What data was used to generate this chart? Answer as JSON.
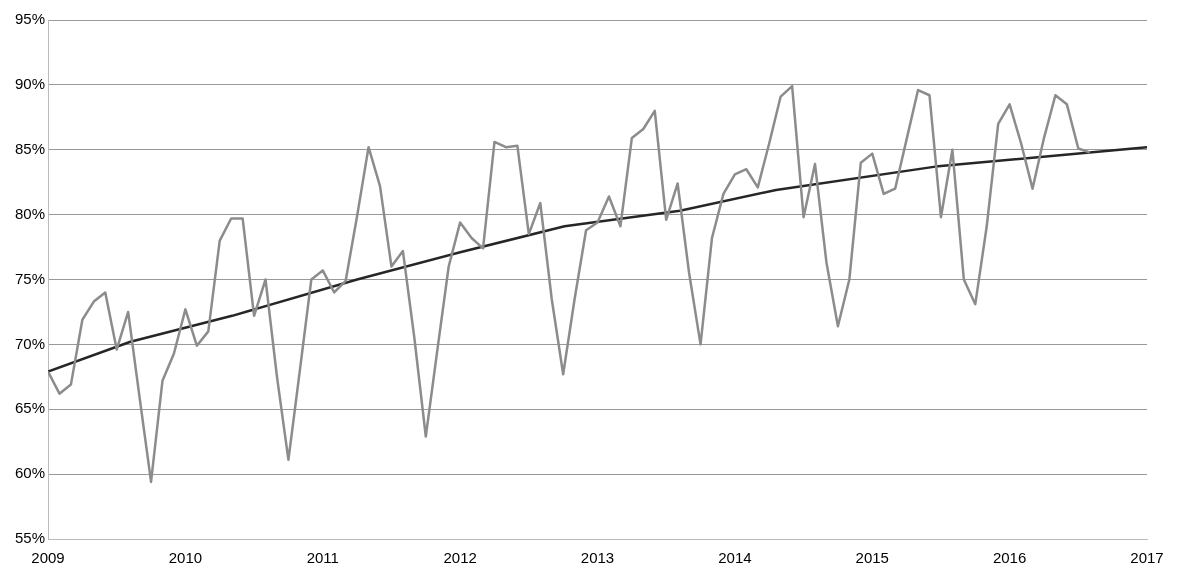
{
  "chart_data": {
    "type": "line",
    "x": [
      2009,
      2009.0833,
      2009.1667,
      2009.25,
      2009.3333,
      2009.4167,
      2009.5,
      2009.5833,
      2009.6667,
      2009.75,
      2009.8333,
      2009.9167,
      2010,
      2010.0833,
      2010.1667,
      2010.25,
      2010.3333,
      2010.4167,
      2010.5,
      2010.5833,
      2010.6667,
      2010.75,
      2010.8333,
      2010.9167,
      2011,
      2011.0833,
      2011.1667,
      2011.25,
      2011.3333,
      2011.4167,
      2011.5,
      2011.5833,
      2011.6667,
      2011.75,
      2011.8333,
      2011.9167,
      2012,
      2012.0833,
      2012.1667,
      2012.25,
      2012.3333,
      2012.4167,
      2012.5,
      2012.5833,
      2012.6667,
      2012.75,
      2012.8333,
      2012.9167,
      2013,
      2013.0833,
      2013.1667,
      2013.25,
      2013.3333,
      2013.4167,
      2013.5,
      2013.5833,
      2013.6667,
      2013.75,
      2013.8333,
      2013.9167,
      2014,
      2014.0833,
      2014.1667,
      2014.25,
      2014.3333,
      2014.4167,
      2014.5,
      2014.5833,
      2014.6667,
      2014.75,
      2014.8333,
      2014.9167,
      2015,
      2015.0833,
      2015.1667,
      2015.25,
      2015.3333,
      2015.4167,
      2015.5,
      2015.5833,
      2015.6667,
      2015.75,
      2015.8333,
      2015.9167,
      2016,
      2016.0833,
      2016.1667,
      2016.25,
      2016.3333,
      2016.4167,
      2016.5,
      2016.5833
    ],
    "series": [
      {
        "color": "#8c8c8c",
        "values": [
          67.9,
          66.2,
          66.9,
          71.9,
          73.3,
          74.0,
          69.6,
          72.5,
          65.9,
          59.4,
          67.2,
          69.3,
          72.7,
          69.9,
          71.0,
          78.0,
          79.7,
          79.7,
          72.2,
          75.0,
          67.5,
          61.1,
          68.0,
          75.0,
          75.7,
          74.0,
          74.9,
          79.9,
          85.2,
          82.2,
          76.0,
          77.2,
          70.5,
          62.9,
          69.5,
          76.0,
          79.4,
          78.2,
          77.4,
          85.6,
          85.2,
          85.3,
          78.5,
          80.9,
          73.5,
          67.7,
          73.5,
          78.8,
          79.4,
          81.4,
          79.1,
          85.9,
          86.6,
          88.0,
          79.6,
          82.4,
          75.5,
          70.0,
          78.2,
          81.6,
          83.1,
          83.5,
          82.1,
          85.5,
          89.1,
          89.9,
          79.8,
          83.9,
          76.3,
          71.4,
          75.0,
          84.0,
          84.7,
          81.6,
          82.0,
          85.8,
          89.6,
          89.2,
          79.8,
          85.0,
          75.0,
          73.1,
          79.1,
          87.0,
          88.5,
          85.5,
          82.0,
          85.9,
          89.2,
          88.5,
          85.1,
          84.8
        ]
      },
      {
        "type": "line",
        "color": "#262626",
        "x": [
          2009,
          2009.6,
          2010.34,
          2011.25,
          2012.0,
          2012.76,
          2013.6,
          2014.3,
          2015.46,
          2016.9,
          2017
        ],
        "values": [
          67.9,
          70.2,
          72.2,
          75.0,
          77.1,
          79.1,
          80.3,
          81.9,
          83.7,
          85.1,
          85.2
        ]
      }
    ],
    "xlim": [
      2009,
      2017
    ],
    "xticks": [
      2009,
      2010,
      2011,
      2012,
      2013,
      2014,
      2015,
      2016,
      2017
    ],
    "ylim": [
      55,
      95
    ],
    "yticks": [
      {
        "value": 55,
        "label": "55%"
      },
      {
        "value": 60,
        "label": "60%"
      },
      {
        "value": 65,
        "label": "65%"
      },
      {
        "value": 70,
        "label": "70%"
      },
      {
        "value": 75,
        "label": "75%"
      },
      {
        "value": 80,
        "label": "80%"
      },
      {
        "value": 85,
        "label": "85%"
      },
      {
        "value": 90,
        "label": "90%"
      },
      {
        "value": 95,
        "label": "95%"
      }
    ],
    "grid": "y",
    "legend": false,
    "marker": "none",
    "line_style": "solid"
  }
}
